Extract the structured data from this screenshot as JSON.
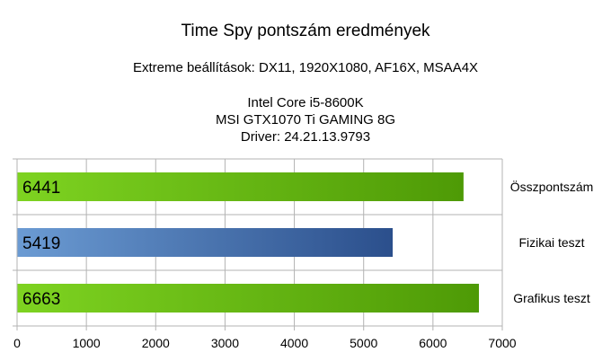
{
  "title": "Time Spy pontszám eredmények",
  "subtitle": "Extreme beállítások: DX11, 1920X1080, AF16X, MSAA4X",
  "info_lines": [
    "Intel Core i5-8600K",
    "MSI GTX1070 Ti GAMING 8G",
    "Driver: 24.21.13.9793"
  ],
  "chart_data": {
    "type": "bar",
    "orientation": "horizontal",
    "title": "Time Spy pontszám eredmények",
    "subtitle": "Extreme beállítások: DX11, 1920X1080, AF16X, MSAA4X",
    "categories": [
      "Összpontszám",
      "Fizikai teszt",
      "Grafikus teszt"
    ],
    "values": [
      6441,
      5419,
      6663
    ],
    "data_labels": [
      "6441",
      "5419",
      "6663"
    ],
    "bar_colors": [
      [
        "#7ed321",
        "#4e9a06"
      ],
      [
        "#6b9bd3",
        "#2b4f8c"
      ],
      [
        "#7ed321",
        "#4e9a06"
      ]
    ],
    "xlim": [
      0,
      7000
    ],
    "x_ticks": [
      0,
      1000,
      2000,
      3000,
      4000,
      5000,
      6000,
      7000
    ],
    "category_label_side": "right",
    "grid": true,
    "legend": "none"
  }
}
